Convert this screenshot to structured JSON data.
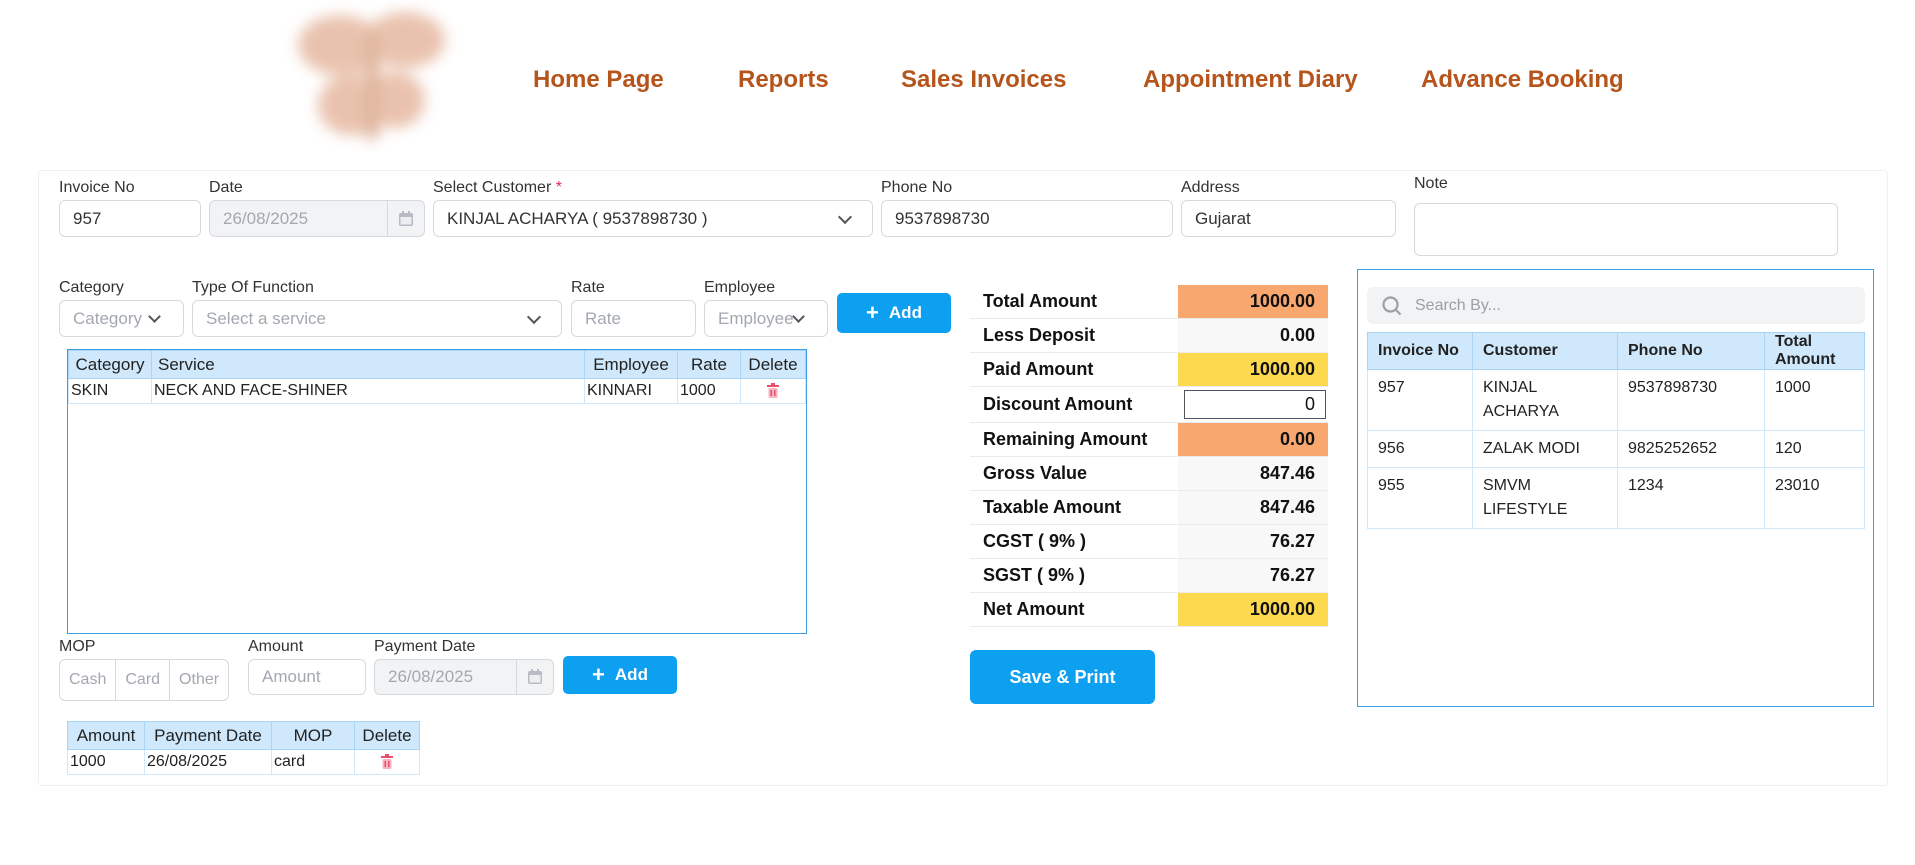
{
  "nav": {
    "home": "Home Page",
    "reports": "Reports",
    "sales_invoices": "Sales Invoices",
    "appointment_diary": "Appointment Diary",
    "advance_booking": "Advance Booking"
  },
  "invoice": {
    "invoice_no_label": "Invoice No",
    "invoice_no_value": "957",
    "date_label": "Date",
    "date_value": "26/08/2025",
    "customer_label": "Select Customer",
    "required_mark": "*",
    "customer_value": "KINJAL ACHARYA ( 9537898730 )",
    "phone_label": "Phone No",
    "phone_value": "9537898730",
    "address_label": "Address",
    "address_value": "Gujarat",
    "note_label": "Note",
    "note_value": ""
  },
  "service_entry": {
    "category_label": "Category",
    "category_placeholder": "Category",
    "function_label": "Type Of Function",
    "function_placeholder": "Select a service",
    "rate_label": "Rate",
    "rate_placeholder": "Rate",
    "employee_label": "Employee",
    "employee_placeholder": "Employee",
    "add_label": "Add"
  },
  "services_table": {
    "headers": [
      "Category",
      "Service",
      "Employee",
      "Rate",
      "Delete"
    ],
    "rows": [
      {
        "category": "SKIN",
        "service": "NECK AND FACE-SHINER",
        "employee": "KINNARI",
        "rate": "1000"
      }
    ]
  },
  "payment_entry": {
    "mop_label": "MOP",
    "mop_options": [
      "Cash",
      "Card",
      "Other"
    ],
    "amount_label": "Amount",
    "amount_placeholder": "Amount",
    "payment_date_label": "Payment Date",
    "payment_date_value": "26/08/2025",
    "add_label": "Add"
  },
  "payments_table": {
    "headers": [
      "Amount",
      "Payment Date",
      "MOP",
      "Delete"
    ],
    "rows": [
      {
        "amount": "1000",
        "date": "26/08/2025",
        "mop": "card"
      }
    ]
  },
  "summary": {
    "total_amount": {
      "label": "Total Amount",
      "value": "1000.00"
    },
    "less_deposit": {
      "label": "Less Deposit",
      "value": "0.00"
    },
    "paid_amount": {
      "label": "Paid Amount",
      "value": "1000.00"
    },
    "discount_amount": {
      "label": "Discount Amount",
      "value": "0"
    },
    "remaining_amount": {
      "label": "Remaining Amount",
      "value": "0.00"
    },
    "gross_value": {
      "label": "Gross Value",
      "value": "847.46"
    },
    "taxable_amount": {
      "label": "Taxable Amount",
      "value": "847.46"
    },
    "cgst": {
      "label": "CGST ( 9% )",
      "value": "76.27"
    },
    "sgst": {
      "label": "SGST ( 9% )",
      "value": "76.27"
    },
    "net_amount": {
      "label": "Net Amount",
      "value": "1000.00"
    },
    "colors": {
      "orange": "#f8a86e",
      "yellow": "#fdd94f"
    }
  },
  "save_print_label": "Save & Print",
  "recent": {
    "search_placeholder": "Search By...",
    "headers": [
      "Invoice No",
      "Customer",
      "Phone No",
      "Total Amount"
    ],
    "rows": [
      {
        "invoice": "957",
        "customer": "KINJAL ACHARYA",
        "phone": "9537898730",
        "total": "1000"
      },
      {
        "invoice": "956",
        "customer": "ZALAK MODI",
        "phone": "9825252652",
        "total": "120"
      },
      {
        "invoice": "955",
        "customer": "SMVM LIFESTYLE",
        "phone": "1234",
        "total": "23010"
      }
    ]
  },
  "colors": {
    "accent": "#0d9ff0",
    "nav": "#b5541b",
    "table_header": "#cfe8fb"
  }
}
